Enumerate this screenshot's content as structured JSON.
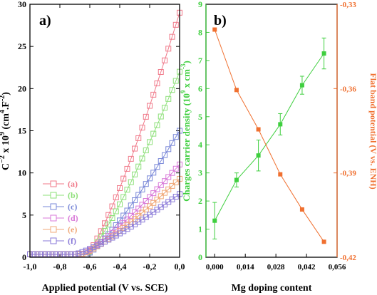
{
  "chart_data": [
    {
      "type": "line",
      "panel_label": "a)",
      "xlabel": "Applied potential (V vs. SCE)",
      "ylabel_main": "C",
      "ylabel_sup1": "−2",
      "ylabel_mid": " x 10",
      "ylabel_sup2": "9",
      "ylabel_unit": " (cm",
      "ylabel_sup3": "4",
      "ylabel_unit2": ".F",
      "ylabel_sup4": "-2",
      "ylabel_end": ")",
      "xlim": [
        -1.0,
        0.0
      ],
      "ylim": [
        0,
        30
      ],
      "xticks": [
        -1.0,
        -0.8,
        -0.6,
        -0.4,
        -0.2,
        0.0
      ],
      "xtick_labels": [
        "-1,0",
        "-0,8",
        "-0,6",
        "-0,4",
        "-0,2",
        "0,0"
      ],
      "yticks": [
        0,
        5,
        10,
        15,
        20,
        25,
        30
      ],
      "ytick_labels": [
        "0",
        "5",
        "10",
        "15",
        "20",
        "25",
        "30"
      ],
      "legend_position": "center-left",
      "series": [
        {
          "name": "(a)",
          "color": "#f07a8a",
          "onset": -0.62,
          "ymax": 29.0
        },
        {
          "name": "(b)",
          "color": "#8ee07a",
          "onset": -0.62,
          "ymax": 22.0
        },
        {
          "name": "(c)",
          "color": "#7a88d8",
          "onset": -0.62,
          "ymax": 15.0
        },
        {
          "name": "(d)",
          "color": "#d878d8",
          "onset": -0.66,
          "ymax": 11.0
        },
        {
          "name": "(e)",
          "color": "#f0a878",
          "onset": -0.66,
          "ymax": 9.3
        },
        {
          "name": "(f)",
          "color": "#8a7ad8",
          "onset": -0.7,
          "ymax": 7.5
        }
      ]
    },
    {
      "type": "line",
      "panel_label": "b)",
      "xlabel": "Mg doping content",
      "ylabel_left_main": "Charges carrier density (10",
      "ylabel_left_sup1": "9",
      "ylabel_left_mid": " x cm",
      "ylabel_left_sup2": "-3",
      "ylabel_left_end": ")",
      "ylabel_right": "Flat band potential (V vs. ENH)",
      "xlim": [
        -0.004,
        0.056
      ],
      "xticks": [
        0.0,
        0.014,
        0.028,
        0.042,
        0.056
      ],
      "xtick_labels": [
        "0,000",
        "0,014",
        "0,028",
        "0,042",
        "0,056"
      ],
      "ylim_left": [
        0,
        9
      ],
      "yticks_left": [
        0,
        1,
        2,
        3,
        4,
        5,
        6,
        7,
        8,
        9
      ],
      "ytick_labels_left": [
        "0",
        "1",
        "2",
        "3",
        "4",
        "5",
        "6",
        "7",
        "8",
        "9"
      ],
      "ylim_right": [
        -0.42,
        -0.33
      ],
      "yticks_right": [
        -0.42,
        -0.39,
        -0.36,
        -0.33
      ],
      "ytick_labels_right": [
        "-0,42",
        "-0,39",
        "-0,36",
        "-0,33"
      ],
      "left_color": "#3fcf3f",
      "right_color": "#f07030",
      "series": [
        {
          "axis": "left",
          "color": "#3fcf3f",
          "x": [
            0.0,
            0.01,
            0.02,
            0.03,
            0.04,
            0.05
          ],
          "y": [
            1.3,
            2.75,
            3.62,
            4.73,
            6.12,
            7.25
          ],
          "err": [
            0.65,
            0.25,
            0.55,
            0.38,
            0.32,
            0.55
          ]
        },
        {
          "axis": "right",
          "color": "#f07030",
          "x": [
            0.0,
            0.01,
            0.02,
            0.03,
            0.04,
            0.05
          ],
          "y": [
            -0.339,
            -0.3605,
            -0.3745,
            -0.3905,
            -0.403,
            -0.4145
          ]
        }
      ]
    }
  ]
}
